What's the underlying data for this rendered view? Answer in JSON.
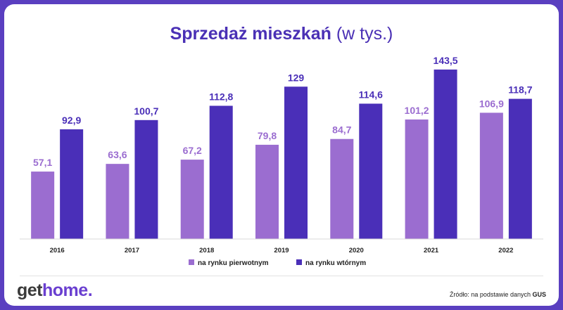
{
  "title": {
    "main": "Sprzedaż mieszkań",
    "suffix": "(w tys.)"
  },
  "logo": {
    "part1": "get",
    "part2": "home",
    "dot": "."
  },
  "source": {
    "prefix": "Źródło: na podstawie danych",
    "name": "GUS"
  },
  "colors": {
    "primary": "#9b6dd0",
    "secondary": "#4a2fb8",
    "frame": "#5a3fc0"
  },
  "chart_data": {
    "type": "bar",
    "categories": [
      "2016",
      "2017",
      "2018",
      "2019",
      "2020",
      "2021",
      "2022"
    ],
    "series": [
      {
        "name": "na rynku pierwotnym",
        "color": "#9b6dd0",
        "values": [
          57.1,
          63.6,
          67.2,
          79.8,
          84.7,
          101.2,
          106.9
        ],
        "labels": [
          "57,1",
          "63,6",
          "67,2",
          "79,8",
          "84,7",
          "101,2",
          "106,9"
        ]
      },
      {
        "name": "na rynku wtórnym",
        "color": "#4a2fb8",
        "values": [
          92.9,
          100.7,
          112.8,
          129,
          114.6,
          143.5,
          118.7
        ],
        "labels": [
          "92,9",
          "100,7",
          "112,8",
          "129",
          "114,6",
          "143,5",
          "118,7"
        ]
      }
    ],
    "ylim": [
      0,
      150
    ],
    "grid": false,
    "legend": "bottom"
  }
}
